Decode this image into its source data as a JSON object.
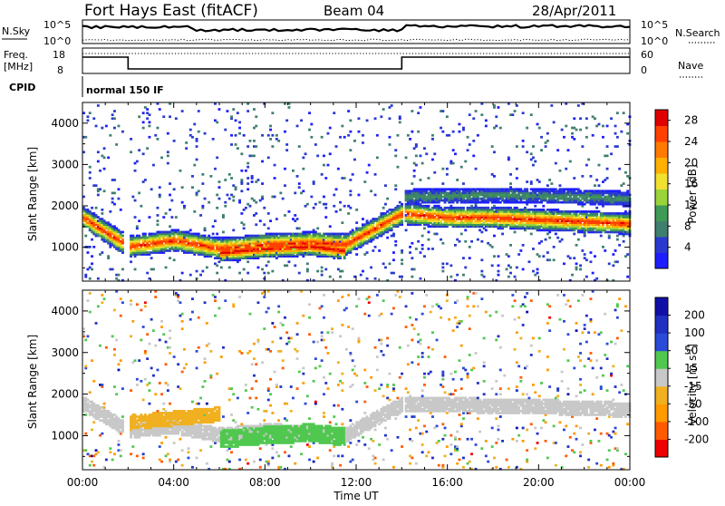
{
  "header": {
    "station": "Fort Hays East (fitACF)",
    "beam": "Beam 04",
    "date": "28/Apr/2011"
  },
  "top_panels": {
    "nsky_label": "N.Sky",
    "nsearch_label": "N.Search",
    "noise_ticks": [
      "10^5",
      "10^0"
    ],
    "freq_label_1": "Freq.",
    "freq_label_2": "[MHz]",
    "freq_ticks": [
      "18",
      "8"
    ],
    "nave_label": "Nave",
    "nave_ticks": [
      "60",
      "0"
    ],
    "cpid_label": "CPID",
    "cpid_text": "normal 150 IF"
  },
  "chart_data": [
    {
      "type": "heatmap",
      "title": "Power",
      "xlabel": "Time UT",
      "ylabel": "Slant Range [km]",
      "x_ticks": [
        "00:00",
        "04:00",
        "08:00",
        "12:00",
        "16:00",
        "20:00",
        "00:00"
      ],
      "x_range_hours": [
        0,
        24
      ],
      "ylim": [
        180,
        4500
      ],
      "y_ticks": [
        1000,
        2000,
        3000,
        4000
      ],
      "colorbar_label": "Power [dB]",
      "colorbar_ticks": [
        "4",
        "8",
        "12",
        "16",
        "20",
        "24",
        "28"
      ],
      "colorbar_range": [
        0,
        30
      ],
      "colorbar_colors": [
        "#1e1eff",
        "#2a3ad0",
        "#3f7f6f",
        "#3e9a54",
        "#9ad43a",
        "#f0e030",
        "#ffb000",
        "#ff7a00",
        "#ff4000",
        "#e00000"
      ],
      "features": [
        {
          "name": "main band",
          "hours": [
            0,
            2,
            4,
            6,
            8,
            10,
            11.5,
            14,
            16,
            18,
            20,
            22,
            24
          ],
          "range_km": [
            1700,
            1000,
            1150,
            950,
            1050,
            1100,
            1050,
            1800,
            1700,
            1700,
            1650,
            1600,
            1550
          ],
          "peak_db": 26
        },
        {
          "name": "day echoes",
          "hours": [
            6,
            8,
            10,
            11.5
          ],
          "range_km": [
            850,
            950,
            1000,
            900
          ],
          "peak_db": 28
        },
        {
          "name": "high band",
          "hours": [
            14,
            18,
            22,
            24
          ],
          "range_km": [
            2200,
            2250,
            2200,
            2150
          ],
          "peak_db": 8
        }
      ]
    },
    {
      "type": "heatmap",
      "title": "Velocity",
      "xlabel": "Time UT",
      "ylabel": "Slant Range [km]",
      "x_ticks": [
        "00:00",
        "04:00",
        "08:00",
        "12:00",
        "16:00",
        "20:00",
        "00:00"
      ],
      "x_range_hours": [
        0,
        24
      ],
      "ylim": [
        180,
        4500
      ],
      "y_ticks": [
        1000,
        2000,
        3000,
        4000
      ],
      "colorbar_label": "Velocity [m s^-1]",
      "colorbar_ticks": [
        "200",
        "100",
        "50",
        "15",
        "-15",
        "-50",
        "-100",
        "-200"
      ],
      "colorbar_range": [
        -250,
        250
      ],
      "colorbar_colors": [
        "#ee0000",
        "#ff5a00",
        "#ff9a00",
        "#f0b020",
        "#c8c8c8",
        "#50c850",
        "#2a4ad8",
        "#2030c0",
        "#1010a8"
      ],
      "features": [
        {
          "name": "ground scatter",
          "hours": [
            0,
            2,
            4,
            6,
            8,
            11.5,
            14,
            18,
            22,
            24
          ],
          "range_km": [
            1750,
            1100,
            1200,
            1000,
            1100,
            1000,
            1750,
            1700,
            1650,
            1600
          ],
          "velocity": 0
        },
        {
          "name": "day scatter",
          "hours": [
            6,
            8,
            10,
            11.5
          ],
          "range_km": [
            900,
            1000,
            1050,
            950
          ],
          "velocity": 40
        },
        {
          "name": "morning scatter",
          "hours": [
            2,
            4,
            6
          ],
          "range_km": [
            1300,
            1400,
            1500
          ],
          "velocity": -60
        }
      ]
    }
  ]
}
